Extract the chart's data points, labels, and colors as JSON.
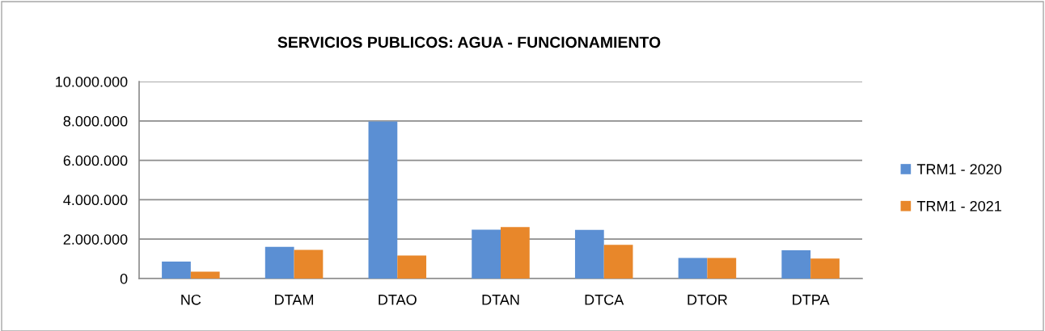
{
  "chart_data": {
    "type": "bar",
    "title": "SERVICIOS PUBLICOS: AGUA - FUNCIONAMIENTO",
    "categories": [
      "NC",
      "DTAM",
      "DTAO",
      "DTAN",
      "DTCA",
      "DTOR",
      "DTPA"
    ],
    "series": [
      {
        "name": "TRM1 - 2020",
        "color": "#5b8fd3",
        "values": [
          860000,
          1610000,
          7970000,
          2480000,
          2470000,
          1050000,
          1430000
        ]
      },
      {
        "name": "TRM1 - 2021",
        "color": "#e8872a",
        "values": [
          350000,
          1460000,
          1170000,
          2610000,
          1710000,
          1050000,
          1010000
        ]
      }
    ],
    "ylim": [
      0,
      10000000
    ],
    "yticks": [
      0,
      {
        "value": 2000000,
        "label": "2.000.000"
      },
      {
        "value": 4000000,
        "label": "4.000.000"
      },
      {
        "value": 6000000,
        "label": "6.000.000"
      },
      {
        "value": 8000000,
        "label": "8.000.000"
      },
      {
        "value": 10000000,
        "label": "10.000.000"
      }
    ],
    "grid": "y",
    "legend": "right"
  }
}
